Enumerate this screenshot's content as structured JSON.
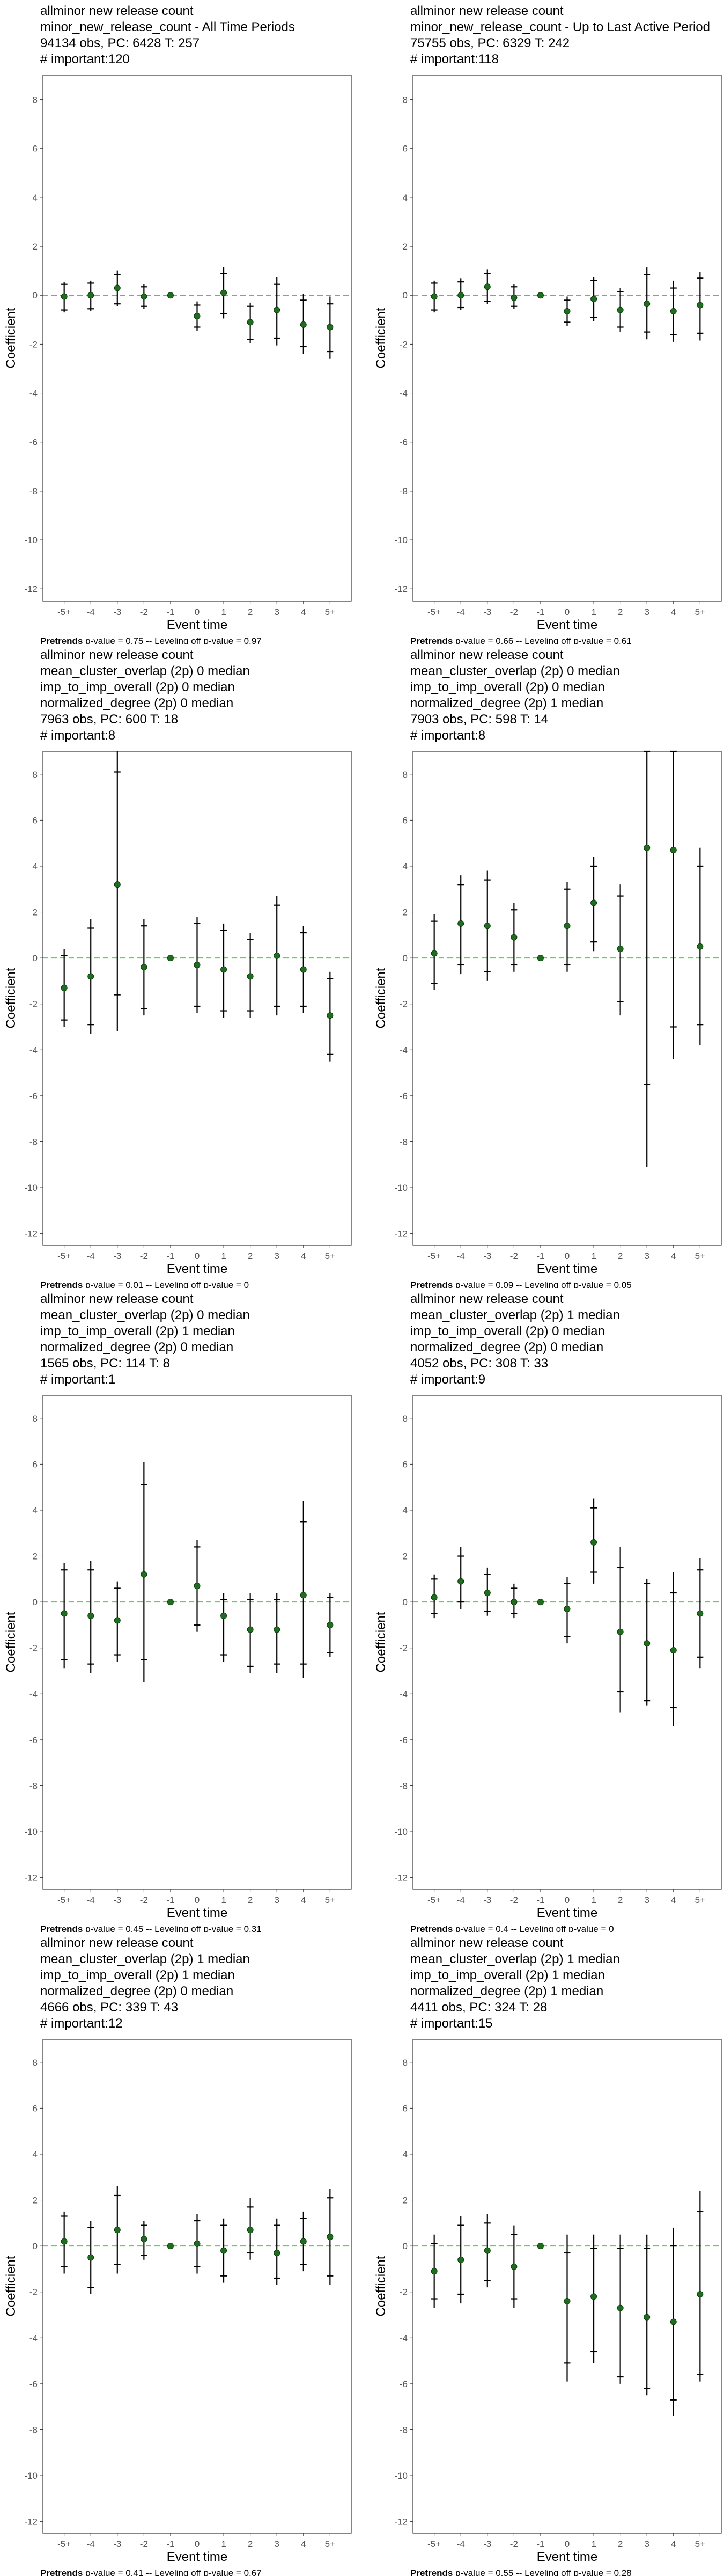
{
  "chart_data": [
    {
      "type": "scatter",
      "title_lines": [
        "allminor new release count",
        "minor_new_release_count - All Time Periods",
        "94134 obs, PC: 6428 T: 257",
        "# important:120"
      ],
      "categories": [
        "-5+",
        "-4",
        "-3",
        "-2",
        "-1",
        "0",
        "1",
        "2",
        "3",
        "4",
        "5+"
      ],
      "values": [
        -0.05,
        0.0,
        0.3,
        -0.05,
        0.0,
        -0.85,
        0.1,
        -1.1,
        -0.6,
        -1.2,
        -1.3
      ],
      "ci95_low": [
        -0.7,
        -0.65,
        -0.45,
        -0.55,
        0.0,
        -1.45,
        -0.95,
        -1.95,
        -2.05,
        -2.4,
        -2.6
      ],
      "ci95_high": [
        0.55,
        0.6,
        1.0,
        0.45,
        0.0,
        -0.25,
        1.15,
        -0.3,
        0.75,
        0.05,
        -0.05
      ],
      "ci90_low": [
        -0.6,
        -0.55,
        -0.35,
        -0.45,
        0.0,
        -1.3,
        -0.75,
        -1.8,
        -1.75,
        -2.1,
        -2.3
      ],
      "ci90_high": [
        0.45,
        0.5,
        0.85,
        0.35,
        0.0,
        -0.4,
        0.9,
        -0.45,
        0.45,
        -0.2,
        -0.35
      ],
      "xlabel": "Event time",
      "ylabel": "Coefficient",
      "ylim": [
        -12.5,
        9
      ],
      "yticks": [
        8,
        6,
        4,
        2,
        0,
        -2,
        -4,
        -6,
        -8,
        -10,
        -12
      ],
      "footer_bold": "Pretrends",
      "footer_rest": " p-value = 0.75 -- Leveling off p-value = 0.97"
    },
    {
      "type": "scatter",
      "title_lines": [
        "allminor new release count",
        "minor_new_release_count - Up to Last Active Period",
        "75755 obs, PC: 6329 T: 242",
        "# important:118"
      ],
      "categories": [
        "-5+",
        "-4",
        "-3",
        "-2",
        "-1",
        "0",
        "1",
        "2",
        "3",
        "4",
        "5+"
      ],
      "values": [
        -0.05,
        0.0,
        0.35,
        -0.1,
        0.0,
        -0.65,
        -0.15,
        -0.6,
        -0.35,
        -0.65,
        -0.4
      ],
      "ci95_low": [
        -0.7,
        -0.6,
        -0.35,
        -0.55,
        0.0,
        -1.25,
        -1.05,
        -1.5,
        -1.8,
        -1.9,
        -1.85
      ],
      "ci95_high": [
        0.6,
        0.7,
        1.05,
        0.45,
        0.0,
        -0.05,
        0.75,
        0.3,
        1.15,
        0.6,
        0.95
      ],
      "ci90_low": [
        -0.6,
        -0.5,
        -0.25,
        -0.45,
        0.0,
        -1.1,
        -0.9,
        -1.3,
        -1.5,
        -1.6,
        -1.55
      ],
      "ci90_high": [
        0.5,
        0.55,
        0.9,
        0.35,
        0.0,
        -0.2,
        0.6,
        0.15,
        0.85,
        0.3,
        0.7
      ],
      "xlabel": "Event time",
      "ylabel": "Coefficient",
      "ylim": [
        -12.5,
        9
      ],
      "yticks": [
        8,
        6,
        4,
        2,
        0,
        -2,
        -4,
        -6,
        -8,
        -10,
        -12
      ],
      "footer_bold": "Pretrends",
      "footer_rest": " p-value = 0.66 -- Leveling off p-value = 0.61"
    },
    {
      "type": "scatter",
      "title_lines": [
        "allminor new release count",
        "mean_cluster_overlap (2p) 0 median",
        "imp_to_imp_overall (2p) 0 median",
        "normalized_degree (2p) 0 median",
        "7963 obs, PC: 600 T: 18",
        "# important:8"
      ],
      "categories": [
        "-5+",
        "-4",
        "-3",
        "-2",
        "-1",
        "0",
        "1",
        "2",
        "3",
        "4",
        "5+"
      ],
      "values": [
        -1.3,
        -0.8,
        3.2,
        -0.4,
        0.0,
        -0.3,
        -0.5,
        -0.8,
        0.1,
        -0.5,
        -2.5
      ],
      "ci95_low": [
        -3.0,
        -3.3,
        -3.2,
        -2.5,
        0.0,
        -2.4,
        -2.6,
        -2.6,
        -2.5,
        -2.4,
        -4.5
      ],
      "ci95_high": [
        0.4,
        1.7,
        9.5,
        1.7,
        0.0,
        1.8,
        1.5,
        1.1,
        2.7,
        1.4,
        -0.6
      ],
      "ci90_low": [
        -2.7,
        -2.9,
        -1.6,
        -2.2,
        0.0,
        -2.1,
        -2.3,
        -2.3,
        -2.1,
        -2.1,
        -4.2
      ],
      "ci90_high": [
        0.1,
        1.3,
        8.1,
        1.4,
        0.0,
        1.5,
        1.2,
        0.8,
        2.3,
        1.1,
        -0.9
      ],
      "xlabel": "Event time",
      "ylabel": "Coefficient",
      "ylim": [
        -12.5,
        9
      ],
      "yticks": [
        8,
        6,
        4,
        2,
        0,
        -2,
        -4,
        -6,
        -8,
        -10,
        -12
      ],
      "footer_bold": "Pretrends",
      "footer_rest": " p-value = 0.01 -- Leveling off p-value = 0"
    },
    {
      "type": "scatter",
      "title_lines": [
        "allminor new release count",
        "mean_cluster_overlap (2p) 0 median",
        "imp_to_imp_overall (2p) 0 median",
        "normalized_degree (2p) 1 median",
        "7903 obs, PC: 598 T: 14",
        "# important:8"
      ],
      "categories": [
        "-5+",
        "-4",
        "-3",
        "-2",
        "-1",
        "0",
        "1",
        "2",
        "3",
        "4",
        "5+"
      ],
      "values": [
        0.2,
        1.5,
        1.4,
        0.9,
        0.0,
        1.4,
        2.4,
        0.4,
        4.8,
        4.7,
        0.5
      ],
      "ci95_low": [
        -1.4,
        -0.7,
        -1.0,
        -0.6,
        0.0,
        -0.6,
        0.3,
        -2.5,
        -9.1,
        -4.4,
        -3.8
      ],
      "ci95_high": [
        1.9,
        3.6,
        3.8,
        2.4,
        0.0,
        3.3,
        4.4,
        3.2,
        9.5,
        9.5,
        4.8
      ],
      "ci90_low": [
        -1.1,
        -0.3,
        -0.6,
        -0.3,
        0.0,
        -0.3,
        0.7,
        -1.9,
        -5.5,
        -3.0,
        -2.9
      ],
      "ci90_high": [
        1.6,
        3.2,
        3.4,
        2.1,
        0.0,
        3.0,
        4.0,
        2.7,
        9.5,
        9.5,
        4.0
      ],
      "xlabel": "Event time",
      "ylabel": "Coefficient",
      "ylim": [
        -12.5,
        9
      ],
      "yticks": [
        8,
        6,
        4,
        2,
        0,
        -2,
        -4,
        -6,
        -8,
        -10,
        -12
      ],
      "footer_bold": "Pretrends",
      "footer_rest": " p-value = 0.09 -- Leveling off p-value = 0.05"
    },
    {
      "type": "scatter",
      "title_lines": [
        "allminor new release count",
        "mean_cluster_overlap (2p) 0 median",
        "imp_to_imp_overall (2p) 1 median",
        "normalized_degree (2p) 0 median",
        "1565 obs, PC: 114 T: 8",
        "# important:1"
      ],
      "categories": [
        "-5+",
        "-4",
        "-3",
        "-2",
        "-1",
        "0",
        "1",
        "2",
        "3",
        "4",
        "5+"
      ],
      "values": [
        -0.5,
        -0.6,
        -0.8,
        1.2,
        0.0,
        0.7,
        -0.6,
        -1.2,
        -1.2,
        0.3,
        -1.0
      ],
      "ci95_low": [
        -2.9,
        -3.1,
        -2.6,
        -3.5,
        0.0,
        -1.3,
        -2.6,
        -3.1,
        -3.1,
        -3.3,
        -2.4
      ],
      "ci95_high": [
        1.7,
        1.8,
        0.9,
        6.1,
        0.0,
        2.7,
        0.4,
        0.4,
        0.4,
        4.4,
        0.4
      ],
      "ci90_low": [
        -2.5,
        -2.7,
        -2.3,
        -2.5,
        0.0,
        -1.0,
        -2.3,
        -2.8,
        -2.7,
        -2.7,
        -2.2
      ],
      "ci90_high": [
        1.4,
        1.4,
        0.6,
        5.1,
        0.0,
        2.4,
        0.1,
        0.1,
        0.1,
        3.5,
        0.2
      ],
      "xlabel": "Event time",
      "ylabel": "Coefficient",
      "ylim": [
        -12.5,
        9
      ],
      "yticks": [
        8,
        6,
        4,
        2,
        0,
        -2,
        -4,
        -6,
        -8,
        -10,
        -12
      ],
      "footer_bold": "Pretrends",
      "footer_rest": " p-value = 0.45 -- Leveling off p-value = 0.31"
    },
    {
      "type": "scatter",
      "title_lines": [
        "allminor new release count",
        "mean_cluster_overlap (2p) 1 median",
        "imp_to_imp_overall (2p) 0 median",
        "normalized_degree (2p) 0 median",
        "4052 obs, PC: 308 T: 33",
        "# important:9"
      ],
      "categories": [
        "-5+",
        "-4",
        "-3",
        "-2",
        "-1",
        "0",
        "1",
        "2",
        "3",
        "4",
        "5+"
      ],
      "values": [
        0.2,
        0.9,
        0.4,
        0.0,
        0.0,
        -0.3,
        2.6,
        -1.3,
        -1.8,
        -2.1,
        -0.5
      ],
      "ci95_low": [
        -0.7,
        -0.3,
        -0.6,
        -0.7,
        0.0,
        -1.8,
        0.8,
        -4.8,
        -4.5,
        -5.4,
        -2.9
      ],
      "ci95_high": [
        1.2,
        2.4,
        1.5,
        0.8,
        0.0,
        1.1,
        4.5,
        2.4,
        1.0,
        1.3,
        1.9
      ],
      "ci90_low": [
        -0.5,
        0.0,
        -0.4,
        -0.5,
        0.0,
        -1.5,
        1.3,
        -3.9,
        -4.3,
        -4.6,
        -2.4
      ],
      "ci90_high": [
        1.0,
        2.0,
        1.2,
        0.6,
        0.0,
        0.8,
        4.1,
        1.5,
        0.8,
        0.4,
        1.4
      ],
      "xlabel": "Event time",
      "ylabel": "Coefficient",
      "ylim": [
        -12.5,
        9
      ],
      "yticks": [
        8,
        6,
        4,
        2,
        0,
        -2,
        -4,
        -6,
        -8,
        -10,
        -12
      ],
      "footer_bold": "Pretrends",
      "footer_rest": " p-value = 0.4 -- Leveling off p-value = 0"
    },
    {
      "type": "scatter",
      "title_lines": [
        "allminor new release count",
        "mean_cluster_overlap (2p) 1 median",
        "imp_to_imp_overall (2p) 1 median",
        "normalized_degree (2p) 0 median",
        "4666 obs, PC: 339 T: 43",
        "# important:12"
      ],
      "categories": [
        "-5+",
        "-4",
        "-3",
        "-2",
        "-1",
        "0",
        "1",
        "2",
        "3",
        "4",
        "5+"
      ],
      "values": [
        0.2,
        -0.5,
        0.7,
        0.3,
        0.0,
        0.1,
        -0.2,
        0.7,
        -0.3,
        0.2,
        0.4
      ],
      "ci95_low": [
        -1.2,
        -2.1,
        -1.2,
        -0.6,
        0.0,
        -1.2,
        -1.6,
        -0.6,
        -1.7,
        -1.1,
        -1.7
      ],
      "ci95_high": [
        1.5,
        1.1,
        2.6,
        1.1,
        0.0,
        1.4,
        1.2,
        2.1,
        1.2,
        1.5,
        2.5
      ],
      "ci90_low": [
        -0.9,
        -1.8,
        -0.8,
        -0.4,
        0.0,
        -0.9,
        -1.3,
        -0.3,
        -1.4,
        -0.8,
        -1.3
      ],
      "ci90_high": [
        1.3,
        0.8,
        2.2,
        0.9,
        0.0,
        1.1,
        0.9,
        1.7,
        0.9,
        1.2,
        2.1
      ],
      "xlabel": "Event time",
      "ylabel": "Coefficient",
      "ylim": [
        -12.5,
        9
      ],
      "yticks": [
        8,
        6,
        4,
        2,
        0,
        -2,
        -4,
        -6,
        -8,
        -10,
        -12
      ],
      "footer_bold": "Pretrends",
      "footer_rest": " p-value = 0.41 -- Leveling off p-value = 0.67"
    },
    {
      "type": "scatter",
      "title_lines": [
        "allminor new release count",
        "mean_cluster_overlap (2p) 1 median",
        "imp_to_imp_overall (2p) 1 median",
        "normalized_degree (2p) 1 median",
        "4411 obs, PC: 324 T: 28",
        "# important:15"
      ],
      "categories": [
        "-5+",
        "-4",
        "-3",
        "-2",
        "-1",
        "0",
        "1",
        "2",
        "3",
        "4",
        "5+"
      ],
      "values": [
        -1.1,
        -0.6,
        -0.2,
        -0.9,
        0.0,
        -2.4,
        -2.2,
        -2.7,
        -3.1,
        -3.3,
        -2.1
      ],
      "ci95_low": [
        -2.7,
        -2.5,
        -1.8,
        -2.7,
        0.0,
        -5.9,
        -5.1,
        -6.0,
        -6.5,
        -7.4,
        -5.9
      ],
      "ci95_high": [
        0.5,
        1.3,
        1.4,
        0.9,
        0.0,
        0.5,
        0.5,
        0.5,
        0.5,
        0.8,
        2.4
      ],
      "ci90_low": [
        -2.3,
        -2.1,
        -1.5,
        -2.3,
        0.0,
        -5.1,
        -4.6,
        -5.7,
        -6.2,
        -6.7,
        -5.6
      ],
      "ci90_high": [
        0.1,
        0.9,
        1.0,
        0.5,
        0.0,
        -0.3,
        -0.1,
        -0.1,
        -0.1,
        0.0,
        1.5
      ],
      "xlabel": "Event time",
      "ylabel": "Coefficient",
      "ylim": [
        -12.5,
        9
      ],
      "yticks": [
        8,
        6,
        4,
        2,
        0,
        -2,
        -4,
        -6,
        -8,
        -10,
        -12
      ],
      "footer_bold": "Pretrends",
      "footer_rest": " p-value = 0.55 -- Leveling off p-value = 0.28"
    }
  ],
  "colors": {
    "point": "#1f6e1f",
    "zero_line": "#33dd33",
    "error_bar": "#000000",
    "tick_text": "#555555",
    "frame": "#333333"
  }
}
